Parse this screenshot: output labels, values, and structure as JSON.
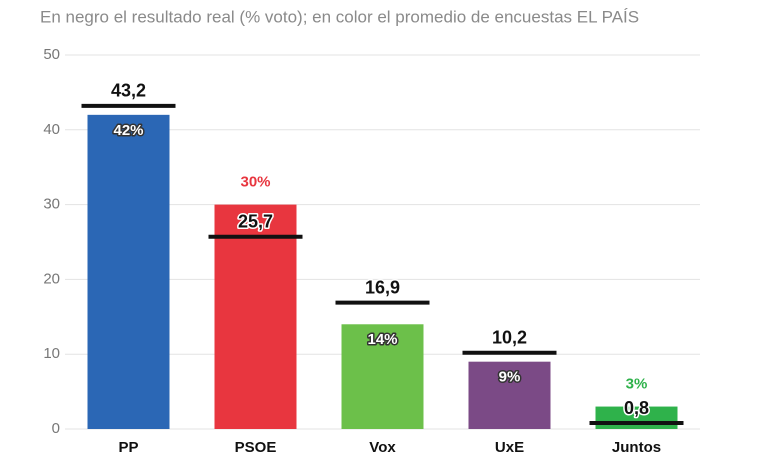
{
  "chart_data": {
    "type": "bar",
    "subtitle": "En negro el resultado real (% voto); en color el promedio de encuestas EL PAÍS",
    "categories": [
      "PP",
      "PSOE",
      "Vox",
      "UxE",
      "Juntos"
    ],
    "series": [
      {
        "colors": [
          "#2b67b5",
          "#e8363f",
          "#6cc04a",
          "#7b4a86",
          "#2fb24b"
        ],
        "values": [
          42,
          30,
          14,
          9,
          3
        ],
        "value_labels": [
          "42%",
          "30%",
          "14%",
          "9%",
          "3%"
        ]
      },
      {
        "color": "#111111",
        "values": [
          43.2,
          25.7,
          16.9,
          10.2,
          0.8
        ],
        "value_labels": [
          "43,2",
          "25,7",
          "16,9",
          "10,2",
          "0,8"
        ]
      }
    ],
    "ylim": [
      0,
      50
    ],
    "yticks": [
      0,
      10,
      20,
      30,
      40,
      50
    ],
    "grid": true
  }
}
